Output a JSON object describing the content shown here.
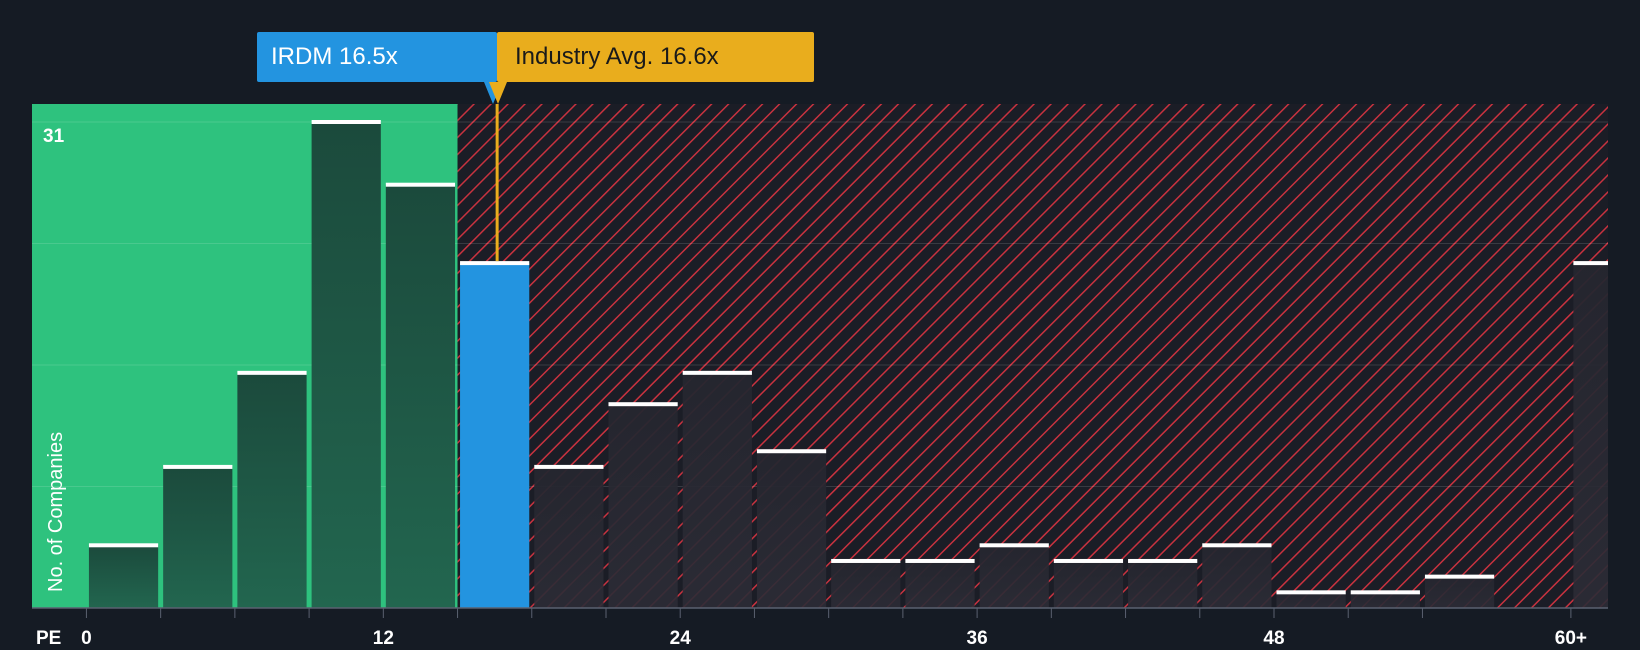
{
  "labels": {
    "company": "IRDM 16.5x",
    "industry": "Industry Avg. 16.6x"
  },
  "colors": {
    "background": "#151b24",
    "undervalued_zone": "#2ec27e",
    "overvalued_hatch": "#e0323f",
    "company_bar": "#2394e0",
    "industry_line": "#e9ad1d",
    "bar_dark": "#1c4a3c",
    "bar_muted": "#26262f"
  },
  "chart_data": {
    "type": "bar",
    "xlabel": "PE",
    "ylabel": "No. of Companies",
    "x_ticks": [
      "0",
      "12",
      "24",
      "36",
      "48",
      "60+"
    ],
    "x_tick_values": [
      0,
      12,
      24,
      36,
      48,
      60
    ],
    "y_ticks": [
      "31"
    ],
    "ylim": [
      0,
      31
    ],
    "xlim": [
      -2.2,
      61.5
    ],
    "bin_width": 3,
    "bins": [
      {
        "x0": 0,
        "value": 4
      },
      {
        "x0": 3,
        "value": 9
      },
      {
        "x0": 6,
        "value": 15
      },
      {
        "x0": 9,
        "value": 31
      },
      {
        "x0": 12,
        "value": 27
      },
      {
        "x0": 15,
        "value": 22,
        "highlight": true
      },
      {
        "x0": 18,
        "value": 9
      },
      {
        "x0": 21,
        "value": 13
      },
      {
        "x0": 24,
        "value": 15
      },
      {
        "x0": 27,
        "value": 10
      },
      {
        "x0": 30,
        "value": 3
      },
      {
        "x0": 33,
        "value": 3
      },
      {
        "x0": 36,
        "value": 4
      },
      {
        "x0": 39,
        "value": 3
      },
      {
        "x0": 42,
        "value": 3
      },
      {
        "x0": 45,
        "value": 4
      },
      {
        "x0": 48,
        "value": 1
      },
      {
        "x0": 51,
        "value": 1
      },
      {
        "x0": 54,
        "value": 2
      },
      {
        "x0": 60,
        "value": 22
      }
    ],
    "company_value": 16.5,
    "industry_avg": 16.6,
    "grid": true
  }
}
